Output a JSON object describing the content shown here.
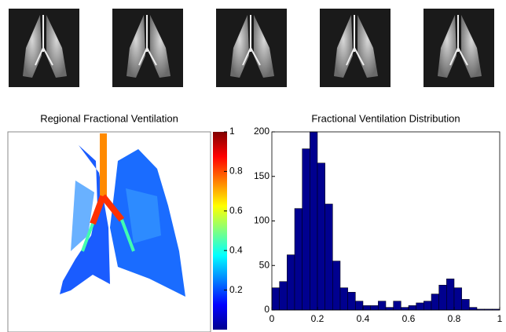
{
  "chart_data": [
    {
      "type": "heatmap",
      "title": "Regional Fractional Ventilation",
      "clim": [
        0,
        1
      ],
      "cticks": [
        0.2,
        0.4,
        0.6,
        0.8,
        1
      ]
    },
    {
      "type": "histogram",
      "title": "Fractional Ventilation Distribution",
      "bins": [
        0,
        0.0333,
        0.0667,
        0.1,
        0.1333,
        0.1667,
        0.2,
        0.2333,
        0.2667,
        0.3,
        0.3333,
        0.3667,
        0.4,
        0.4333,
        0.4667,
        0.5,
        0.5333,
        0.5667,
        0.6,
        0.6333,
        0.6667,
        0.7,
        0.7333,
        0.7667,
        0.8,
        0.8333,
        0.8667,
        0.9,
        0.9333,
        0.9667,
        1
      ],
      "values": [
        25,
        32,
        62,
        114,
        181,
        200,
        165,
        119,
        55,
        25,
        20,
        10,
        5,
        5,
        10,
        3,
        10,
        3,
        5,
        8,
        10,
        18,
        28,
        35,
        25,
        12,
        3,
        1,
        1,
        1
      ],
      "color": "#00008f",
      "xlim": [
        0,
        1
      ],
      "xticks": [
        0,
        0.2,
        0.4,
        0.6,
        0.8,
        1
      ],
      "ylim": [
        0,
        200
      ],
      "yticks": [
        0,
        50,
        100,
        150,
        200
      ]
    }
  ]
}
